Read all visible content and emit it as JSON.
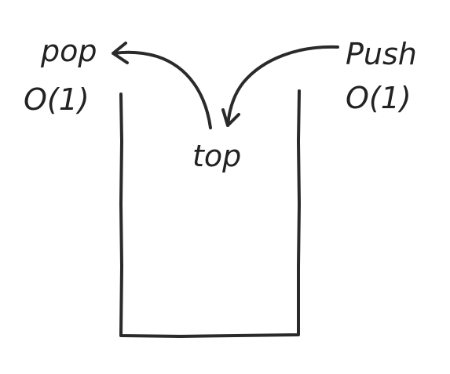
{
  "labels": {
    "pop": "pop",
    "pop_complexity": "O(1)",
    "push": "Push",
    "push_complexity": "O(1)",
    "top": "top"
  },
  "colors": {
    "ink": "#2a2a2a",
    "background": "#ffffff"
  }
}
